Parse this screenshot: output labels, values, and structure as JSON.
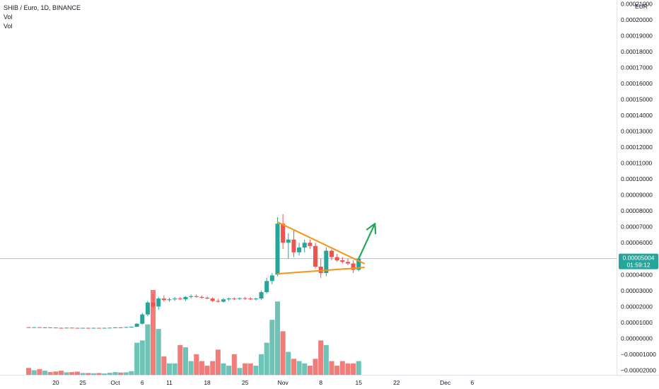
{
  "header": {
    "symbol_line": "SHIB / Euro, 1D, BINANCE",
    "indicators": [
      "Vol",
      "Vol"
    ]
  },
  "price_axis": {
    "currency": "EUR",
    "ticks": [
      "0.00021000",
      "0.00020000",
      "0.00019000",
      "0.00018000",
      "0.00017000",
      "0.00016000",
      "0.00015000",
      "0.00014000",
      "0.00013000",
      "0.00012000",
      "0.00011000",
      "0.00010000",
      "0.00009000",
      "0.00008000",
      "0.00007000",
      "0.00006000",
      "0.00005000",
      "0.00004000",
      "0.00003000",
      "0.00002000",
      "0.00001000",
      "0.00000000",
      "−0.00001000",
      "−0.00002000"
    ],
    "current_price_label": "0.00005004",
    "countdown_label": "01:59:12"
  },
  "time_axis": {
    "ticks": [
      "20",
      "25",
      "Oct",
      "6",
      "11",
      "18",
      "25",
      "Nov",
      "8",
      "15",
      "22",
      "Dec",
      "6"
    ]
  },
  "colors": {
    "up": "#26a69a",
    "down": "#ef5350",
    "volume_up": "#5ebcae",
    "volume_down": "#ef6f6c",
    "trendline": "#f7931a",
    "arrow": "#26a65b",
    "price_line": "#26a69a",
    "axis_text": "#131722"
  },
  "chart_data": {
    "type": "candlestick",
    "symbol": "SHIB / Euro",
    "interval": "1D",
    "exchange": "BINANCE",
    "y_unit": "EUR",
    "ylim": [
      -2.2e-05,
      0.000211
    ],
    "current_price": 5.004e-05,
    "series": [
      {
        "date": "2021-09-15",
        "open": 7e-06,
        "high": 7.1e-06,
        "low": 6.8e-06,
        "close": 6.9e-06,
        "volume": 3e-06
      },
      {
        "date": "2021-09-16",
        "open": 6.9e-06,
        "high": 7.1e-06,
        "low": 6.8e-06,
        "close": 7e-06,
        "volume": 2e-06
      },
      {
        "date": "2021-09-17",
        "open": 7e-06,
        "high": 7.1e-06,
        "low": 6.7e-06,
        "close": 6.8e-06,
        "volume": 2.5e-06
      },
      {
        "date": "2021-09-18",
        "open": 6.8e-06,
        "high": 7e-06,
        "low": 6.7e-06,
        "close": 6.9e-06,
        "volume": 1.8e-06
      },
      {
        "date": "2021-09-19",
        "open": 6.9e-06,
        "high": 7e-06,
        "low": 6.7e-06,
        "close": 6.8e-06,
        "volume": 1.2e-06
      },
      {
        "date": "2021-09-20",
        "open": 6.8e-06,
        "high": 6.9e-06,
        "low": 6.5e-06,
        "close": 6.6e-06,
        "volume": 1.5e-06
      },
      {
        "date": "2021-09-21",
        "open": 6.6e-06,
        "high": 6.8e-06,
        "low": 6.4e-06,
        "close": 6.5e-06,
        "volume": 1.8e-06
      },
      {
        "date": "2021-09-22",
        "open": 6.5e-06,
        "high": 6.8e-06,
        "low": 6.4e-06,
        "close": 6.7e-06,
        "volume": 1.1e-06
      },
      {
        "date": "2021-09-23",
        "open": 6.7e-06,
        "high": 6.8e-06,
        "low": 6.5e-06,
        "close": 6.6e-06,
        "volume": 1.2e-06
      },
      {
        "date": "2021-09-24",
        "open": 6.6e-06,
        "high": 6.7e-06,
        "low": 6.4e-06,
        "close": 6.5e-06,
        "volume": 1.4e-06
      },
      {
        "date": "2021-09-25",
        "open": 6.5e-06,
        "high": 6.7e-06,
        "low": 6.4e-06,
        "close": 6.6e-06,
        "volume": 8e-07
      },
      {
        "date": "2021-09-26",
        "open": 6.6e-06,
        "high": 6.7e-06,
        "low": 6.4e-06,
        "close": 6.5e-06,
        "volume": 8e-07
      },
      {
        "date": "2021-09-27",
        "open": 6.5e-06,
        "high": 6.7e-06,
        "low": 6.4e-06,
        "close": 6.6e-06,
        "volume": 7e-07
      },
      {
        "date": "2021-09-28",
        "open": 6.6e-06,
        "high": 6.7e-06,
        "low": 6.4e-06,
        "close": 6.5e-06,
        "volume": 8e-07
      },
      {
        "date": "2021-09-29",
        "open": 6.5e-06,
        "high": 6.7e-06,
        "low": 6.4e-06,
        "close": 6.6e-06,
        "volume": 6e-07
      },
      {
        "date": "2021-09-30",
        "open": 6.6e-06,
        "high": 6.8e-06,
        "low": 6.5e-06,
        "close": 6.7e-06,
        "volume": 9e-07
      },
      {
        "date": "2021-10-01",
        "open": 6.7e-06,
        "high": 7e-06,
        "low": 6.6e-06,
        "close": 6.9e-06,
        "volume": 1.2e-06
      },
      {
        "date": "2021-10-02",
        "open": 6.9e-06,
        "high": 7.1e-06,
        "low": 6.7e-06,
        "close": 6.8e-06,
        "volume": 1e-06
      },
      {
        "date": "2021-10-03",
        "open": 6.8e-06,
        "high": 7.2e-06,
        "low": 6.7e-06,
        "close": 7.1e-06,
        "volume": 1.1e-06
      },
      {
        "date": "2021-10-04",
        "open": 7.1e-06,
        "high": 7.5e-06,
        "low": 6.9e-06,
        "close": 7.3e-06,
        "volume": 1.6e-06
      },
      {
        "date": "2021-10-05",
        "open": 7.3e-06,
        "high": 9.5e-06,
        "low": 7.1e-06,
        "close": 9.2e-06,
        "volume": 1.4e-05
      },
      {
        "date": "2021-10-06",
        "open": 9.2e-06,
        "high": 1.6e-05,
        "low": 8.5e-06,
        "close": 1.5e-05,
        "volume": 1.5e-05
      },
      {
        "date": "2021-10-07",
        "open": 1.5e-05,
        "high": 2.35e-05,
        "low": 1.4e-05,
        "close": 2.25e-05,
        "volume": 2.2e-05
      },
      {
        "date": "2021-10-08",
        "open": 2.25e-05,
        "high": 2.8e-05,
        "low": 1.9e-05,
        "close": 2e-05,
        "volume": 3.7e-05
      },
      {
        "date": "2021-10-09",
        "open": 2e-05,
        "high": 2.6e-05,
        "low": 1.8e-05,
        "close": 2.5e-05,
        "volume": 2e-05
      },
      {
        "date": "2021-10-10",
        "open": 2.5e-05,
        "high": 2.7e-05,
        "low": 2.3e-05,
        "close": 2.4e-05,
        "volume": 8e-06
      },
      {
        "date": "2021-10-11",
        "open": 2.4e-05,
        "high": 2.55e-05,
        "low": 2.3e-05,
        "close": 2.45e-05,
        "volume": 5e-06
      },
      {
        "date": "2021-10-12",
        "open": 2.45e-05,
        "high": 2.6e-05,
        "low": 2.35e-05,
        "close": 2.5e-05,
        "volume": 5e-06
      },
      {
        "date": "2021-10-13",
        "open": 2.5e-05,
        "high": 2.6e-05,
        "low": 2.4e-05,
        "close": 2.45e-05,
        "volume": 1.3e-05
      },
      {
        "date": "2021-10-14",
        "open": 2.45e-05,
        "high": 2.65e-05,
        "low": 2.35e-05,
        "close": 2.6e-05,
        "volume": 1.2e-05
      },
      {
        "date": "2021-10-15",
        "open": 2.6e-05,
        "high": 2.75e-05,
        "low": 2.5e-05,
        "close": 2.65e-05,
        "volume": 6e-06
      },
      {
        "date": "2021-10-16",
        "open": 2.65e-05,
        "high": 2.75e-05,
        "low": 2.55e-05,
        "close": 2.6e-05,
        "volume": 9e-06
      },
      {
        "date": "2021-10-17",
        "open": 2.6e-05,
        "high": 2.7e-05,
        "low": 2.5e-05,
        "close": 2.55e-05,
        "volume": 6e-06
      },
      {
        "date": "2021-10-18",
        "open": 2.55e-05,
        "high": 2.65e-05,
        "low": 2.45e-05,
        "close": 2.5e-05,
        "volume": 4e-06
      },
      {
        "date": "2021-10-19",
        "open": 2.5e-05,
        "high": 2.58e-05,
        "low": 2.28e-05,
        "close": 2.35e-05,
        "volume": 6e-06
      },
      {
        "date": "2021-10-20",
        "open": 2.35e-05,
        "high": 2.48e-05,
        "low": 2.25e-05,
        "close": 2.3e-05,
        "volume": 1.1e-05
      },
      {
        "date": "2021-10-21",
        "open": 2.3e-05,
        "high": 2.52e-05,
        "low": 2.25e-05,
        "close": 2.45e-05,
        "volume": 5e-06
      },
      {
        "date": "2021-10-22",
        "open": 2.45e-05,
        "high": 2.55e-05,
        "low": 2.35e-05,
        "close": 2.5e-05,
        "volume": 4e-06
      },
      {
        "date": "2021-10-23",
        "open": 2.5e-05,
        "high": 2.58e-05,
        "low": 2.4e-05,
        "close": 2.48e-05,
        "volume": 9e-06
      },
      {
        "date": "2021-10-24",
        "open": 2.48e-05,
        "high": 2.58e-05,
        "low": 2.4e-05,
        "close": 2.52e-05,
        "volume": 3e-06
      },
      {
        "date": "2021-10-25",
        "open": 2.52e-05,
        "high": 2.6e-05,
        "low": 2.42e-05,
        "close": 2.5e-05,
        "volume": 5e-06
      },
      {
        "date": "2021-10-26",
        "open": 2.5e-05,
        "high": 2.58e-05,
        "low": 2.4e-05,
        "close": 2.45e-05,
        "volume": 5e-06
      },
      {
        "date": "2021-10-27",
        "open": 2.45e-05,
        "high": 2.55e-05,
        "low": 2.38e-05,
        "close": 2.5e-05,
        "volume": 4e-06
      },
      {
        "date": "2021-10-28",
        "open": 2.5e-05,
        "high": 3e-05,
        "low": 2.4e-05,
        "close": 2.9e-05,
        "volume": 9e-06
      },
      {
        "date": "2021-10-29",
        "open": 2.9e-05,
        "high": 3.8e-05,
        "low": 2.8e-05,
        "close": 3.6e-05,
        "volume": 1.4e-05
      },
      {
        "date": "2021-10-30",
        "open": 3.6e-05,
        "high": 4.1e-05,
        "low": 3.4e-05,
        "close": 3.95e-05,
        "volume": 2.4e-05
      },
      {
        "date": "2021-10-31",
        "open": 4e-05,
        "high": 7.6e-05,
        "low": 3.9e-05,
        "close": 7.2e-05,
        "volume": 3.2e-05
      },
      {
        "date": "2021-11-01",
        "open": 7.2e-05,
        "high": 7.8e-05,
        "low": 5.6e-05,
        "close": 6e-05,
        "volume": 1.9e-05
      },
      {
        "date": "2021-11-02",
        "open": 6e-05,
        "high": 6.6e-05,
        "low": 5e-05,
        "close": 6.2e-05,
        "volume": 1e-05
      },
      {
        "date": "2021-11-03",
        "open": 6.2e-05,
        "high": 6.8e-05,
        "low": 5.1e-05,
        "close": 5.4e-05,
        "volume": 7e-06
      },
      {
        "date": "2021-11-04",
        "open": 5.4e-05,
        "high": 6e-05,
        "low": 5.2e-05,
        "close": 5.7e-05,
        "volume": 6e-06
      },
      {
        "date": "2021-11-05",
        "open": 5.7e-05,
        "high": 6.2e-05,
        "low": 5.4e-05,
        "close": 6e-05,
        "volume": 5e-06
      },
      {
        "date": "2021-11-06",
        "open": 6e-05,
        "high": 6.2e-05,
        "low": 5.6e-05,
        "close": 5.8e-05,
        "volume": 4e-06
      },
      {
        "date": "2021-11-07",
        "open": 5.8e-05,
        "high": 6e-05,
        "low": 4.4e-05,
        "close": 4.5e-05,
        "volume": 7e-06
      },
      {
        "date": "2021-11-08",
        "open": 4.5e-05,
        "high": 5e-05,
        "low": 3.8e-05,
        "close": 4.1e-05,
        "volume": 1.5e-05
      },
      {
        "date": "2021-11-09",
        "open": 4.1e-05,
        "high": 5.7e-05,
        "low": 3.9e-05,
        "close": 5.5e-05,
        "volume": 1.3e-05
      },
      {
        "date": "2021-11-10",
        "open": 5.5e-05,
        "high": 5.6e-05,
        "low": 4.9e-05,
        "close": 5.1e-05,
        "volume": 6e-06
      },
      {
        "date": "2021-11-11",
        "open": 5.1e-05,
        "high": 5.3e-05,
        "low": 4.8e-05,
        "close": 4.9e-05,
        "volume": 4e-06
      },
      {
        "date": "2021-11-12",
        "open": 4.9e-05,
        "high": 5.1e-05,
        "low": 4.7e-05,
        "close": 4.8e-05,
        "volume": 6e-06
      },
      {
        "date": "2021-11-13",
        "open": 4.8e-05,
        "high": 5e-05,
        "low": 4.6e-05,
        "close": 4.7e-05,
        "volume": 5e-06
      },
      {
        "date": "2021-11-14",
        "open": 4.7e-05,
        "high": 4.9e-05,
        "low": 4.1e-05,
        "close": 4.3e-05,
        "volume": 5e-06
      },
      {
        "date": "2021-11-15",
        "open": 4.3e-05,
        "high": 5.1e-05,
        "low": 4.2e-05,
        "close": 5e-05,
        "volume": 6e-06
      }
    ],
    "annotations": [
      {
        "type": "trendline",
        "name": "upper-trendline",
        "from": {
          "date": "2021-10-31",
          "price": 7.3e-05
        },
        "to": {
          "date": "2021-11-16",
          "price": 4.7e-05
        }
      },
      {
        "type": "trendline",
        "name": "lower-trendline",
        "from": {
          "date": "2021-10-31",
          "price": 4.05e-05
        },
        "to": {
          "date": "2021-11-16",
          "price": 4.45e-05
        }
      },
      {
        "type": "arrow",
        "name": "breakout-arrow",
        "from": {
          "date": "2021-11-15",
          "price": 5e-05
        },
        "to": {
          "date": "2021-11-18",
          "price": 7.2e-05
        }
      }
    ]
  }
}
